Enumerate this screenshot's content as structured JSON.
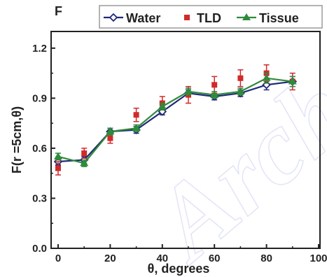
{
  "panel_label": "F",
  "watermark": "Arch",
  "chart_data": {
    "type": "line",
    "xlabel": "θ, degrees",
    "ylabel": "F(r =5cm,θ)",
    "xlim": [
      0,
      100
    ],
    "ylim": [
      0.0,
      1.3
    ],
    "x_ticks": [
      0,
      20,
      40,
      60,
      80,
      100
    ],
    "y_ticks": [
      0.0,
      0.3,
      0.6,
      0.9,
      1.2
    ],
    "x_tick_labels": [
      "0",
      "20",
      "40",
      "60",
      "80",
      "100"
    ],
    "y_tick_labels": [
      "0.0",
      "0.3",
      "0.6",
      "0.9",
      "1.2"
    ],
    "legend_position": "top",
    "series": [
      {
        "name": "Water",
        "marker": "diamond-open",
        "color": "#1f2a78",
        "line": true,
        "x": [
          0,
          10,
          20,
          30,
          40,
          50,
          60,
          70,
          80,
          90
        ],
        "y": [
          0.52,
          0.53,
          0.7,
          0.71,
          0.82,
          0.93,
          0.91,
          0.93,
          0.98,
          1.0
        ],
        "err": [
          0.02,
          0.02,
          0.02,
          0.02,
          0.02,
          0.02,
          0.02,
          0.02,
          0.03,
          0.03
        ]
      },
      {
        "name": "TLD",
        "marker": "square-filled",
        "color": "#d02a2a",
        "line": false,
        "x": [
          0,
          10,
          20,
          30,
          40,
          50,
          60,
          70,
          80,
          90
        ],
        "y": [
          0.48,
          0.57,
          0.66,
          0.8,
          0.87,
          0.92,
          0.98,
          1.02,
          1.05,
          1.0
        ],
        "err": [
          0.04,
          0.03,
          0.03,
          0.04,
          0.04,
          0.05,
          0.05,
          0.05,
          0.05,
          0.05
        ]
      },
      {
        "name": "Tissue",
        "marker": "triangle-filled",
        "color": "#2e8b3a",
        "line": true,
        "x": [
          0,
          10,
          20,
          30,
          40,
          50,
          60,
          70,
          80,
          90
        ],
        "y": [
          0.55,
          0.51,
          0.7,
          0.72,
          0.85,
          0.94,
          0.92,
          0.94,
          1.02,
          1.0
        ],
        "err": [
          0.02,
          0.02,
          0.02,
          0.02,
          0.02,
          0.02,
          0.02,
          0.02,
          0.03,
          0.03
        ]
      }
    ]
  }
}
